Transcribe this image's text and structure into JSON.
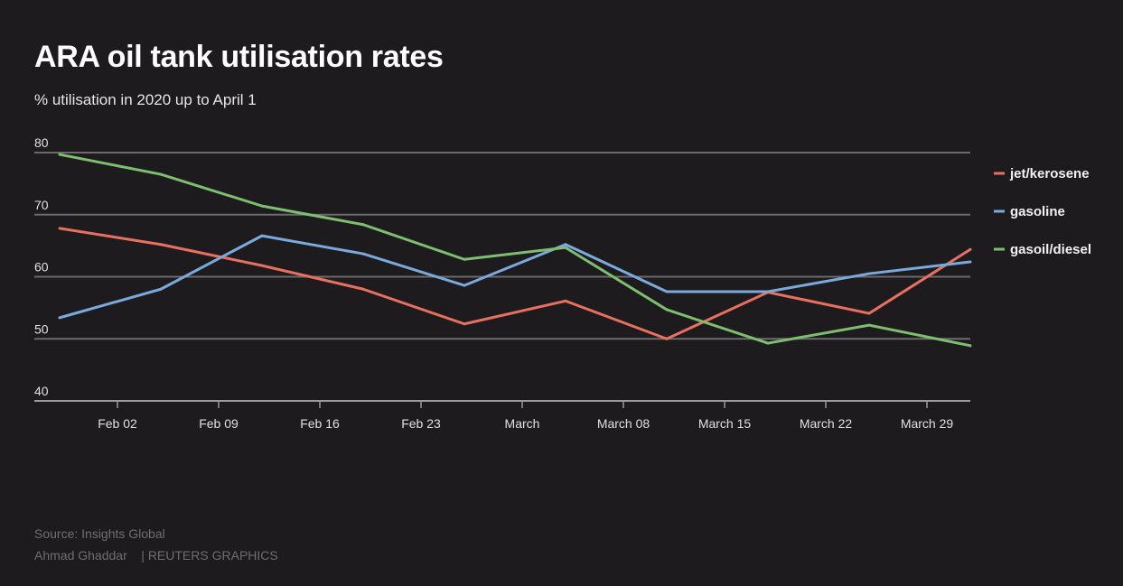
{
  "chart_data": {
    "type": "line",
    "title": "ARA oil tank utilisation rates",
    "subtitle": "% utilisation in 2020 up to April 1",
    "xlabel": "",
    "ylabel": "",
    "x": [
      "2020-01-29",
      "2020-02-05",
      "2020-02-12",
      "2020-02-19",
      "2020-02-26",
      "2020-03-04",
      "2020-03-11",
      "2020-03-18",
      "2020-03-25",
      "2020-04-01"
    ],
    "x_ticks": [
      {
        "date": "2020-02-02",
        "label": "Feb 02"
      },
      {
        "date": "2020-02-09",
        "label": "Feb 09"
      },
      {
        "date": "2020-02-16",
        "label": "Feb 16"
      },
      {
        "date": "2020-02-23",
        "label": "Feb 23"
      },
      {
        "date": "2020-03-01",
        "label": "March"
      },
      {
        "date": "2020-03-08",
        "label": "March 08"
      },
      {
        "date": "2020-03-15",
        "label": "March 15"
      },
      {
        "date": "2020-03-22",
        "label": "March 22"
      },
      {
        "date": "2020-03-29",
        "label": "March 29"
      }
    ],
    "y_ticks": [
      "40",
      "50",
      "60",
      "70",
      "80"
    ],
    "ylim": [
      40,
      80
    ],
    "xlim": [
      "2020-01-29",
      "2020-04-01"
    ],
    "grid": true,
    "legend": "right",
    "series": [
      {
        "name": "jet/kerosene",
        "color": "#e8705f",
        "values": [
          67.8,
          65.2,
          61.8,
          58.0,
          52.4,
          56.1,
          50.0,
          57.5,
          54.1,
          64.4
        ]
      },
      {
        "name": "gasoline",
        "color": "#7aa9dc",
        "values": [
          53.4,
          58.0,
          66.6,
          63.7,
          58.6,
          65.2,
          57.6,
          57.6,
          60.5,
          62.4
        ]
      },
      {
        "name": "gasoil/diesel",
        "color": "#7cbf6e",
        "values": [
          79.7,
          76.5,
          71.4,
          68.4,
          62.8,
          64.7,
          54.7,
          49.3,
          52.2,
          48.9
        ]
      }
    ]
  },
  "footer": {
    "source": "Source: Insights Global",
    "credit": "Ahmad Ghaddar    | REUTERS GRAPHICS"
  }
}
